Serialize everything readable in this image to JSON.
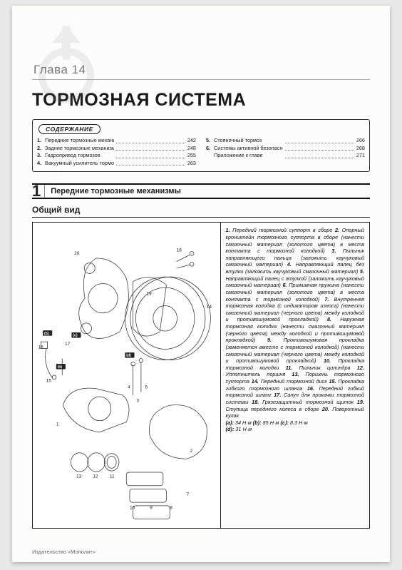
{
  "chapter": {
    "label": "Глава 14"
  },
  "title": "ТОРМОЗНАЯ СИСТЕМА",
  "toc": {
    "header": "СОДЕРЖАНИЕ",
    "left": [
      {
        "n": "1.",
        "label": "Передние тормозные механизмы",
        "page": "242"
      },
      {
        "n": "2.",
        "label": "Задние тормозные механизмы",
        "page": "248"
      },
      {
        "n": "3.",
        "label": "Гидропривод тормозов",
        "page": "255"
      },
      {
        "n": "4.",
        "label": "Вакуумный усилитель тормозов",
        "page": "263"
      }
    ],
    "right": [
      {
        "n": "5.",
        "label": "Стояночный тормоз",
        "page": "266"
      },
      {
        "n": "6.",
        "label": "Системы активной безопасности ABS/ESP",
        "page": "268"
      },
      {
        "n": "",
        "label": "Приложение к главе",
        "page": "271"
      }
    ]
  },
  "section": {
    "num": "1",
    "label": "Передние тормозные механизмы"
  },
  "subsection": "Общий вид",
  "legend_parts": [
    "Передний тормозной суппорт в сборе",
    "Опорный кронштейн тормозного суппорта в сборе (нанести смазочный материал (золотого цвета) в места контакта с тормозной колодкой)",
    "Пыльник направляющего пальца (заложить каучуковый смазочный материал)",
    "Направляющий палец без втулки (заложить каучуковый смазочный материал)",
    "Направляющий палец с втулкой (заложить каучуковый смазочный материал)",
    "Прижимная пружина (нанести смазочный материал (золотого цвета) в места контакта с тормозной колодкой)",
    "Внутренняя тормозная колодка (с индикатором износа) (нанести смазочный материал (черного цвета) между колодкой и противошумовой прокладкой)",
    "Наружная тормозная колодка (нанести смазочный материал (черного цвета) между колодкой и противошумовой прокладкой)",
    "Противошумовая прокладка (заменяется вместе с тормозной колодкой) (нанести смазочный материал (черного цвета) между колодкой и противошумовой прокладкой)",
    "Прокладка тормозной колодки",
    "Пыльник цилиндра",
    "Уплотнитель поршня",
    "Поршень тормозного суппорта",
    "Передний тормозной диск",
    "Прокладка гибкого тормозного шланга",
    "Передний гибкий тормозной шланг",
    "Сапун для прокачки тормозной системы",
    "Грязезащитный тормозной щиток",
    "Ступица переднего колеса в сборе",
    "Поворотный кулак"
  ],
  "torques": {
    "a": "34 Н·м",
    "b": "85 Н·м",
    "c": "8.3 Н·м",
    "d": "31 Н·м"
  },
  "callouts": [
    "1",
    "2",
    "3",
    "4",
    "5",
    "7",
    "8",
    "9",
    "10",
    "11",
    "12",
    "13",
    "14",
    "15",
    "16",
    "17",
    "18",
    "19",
    "20"
  ],
  "torque_tags": [
    "(a)",
    "(b)",
    "(c)",
    "(d)"
  ],
  "publisher": "Издательство «Монолит»"
}
